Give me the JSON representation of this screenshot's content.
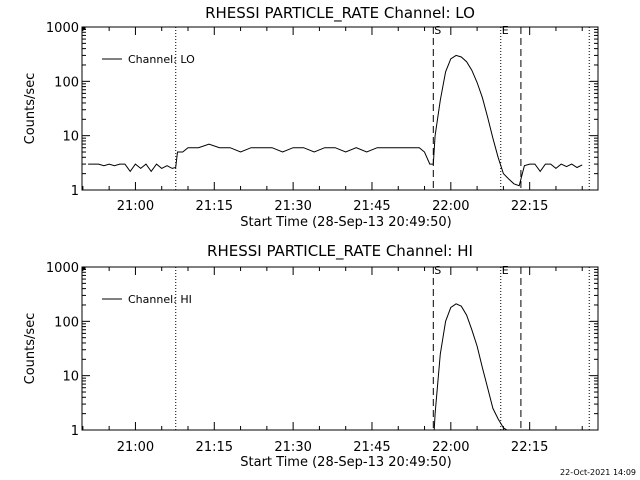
{
  "chart_data": [
    {
      "type": "line",
      "title": "RHESSI PARTICLE_RATE Channel: LO",
      "xlabel": "Start Time (28-Sep-13 20:49:50)",
      "ylabel": "Counts/sec",
      "yscale": "log",
      "ylim": [
        1,
        1000
      ],
      "xlim": [
        "20:49:50",
        "22:28:00"
      ],
      "xticks": [
        "21:00",
        "21:15",
        "21:30",
        "21:45",
        "22:00",
        "22:15"
      ],
      "yticks": [
        "1",
        "10",
        "100",
        "1000"
      ],
      "legend": {
        "label": "Channel: LO",
        "placement": "top-left"
      },
      "markers": [
        {
          "label": "S",
          "time": "21:56:40",
          "style": "dashed"
        },
        {
          "label": "E",
          "time": "22:09:30",
          "style": "dotted"
        }
      ],
      "vlines": [
        {
          "time": "21:07:40",
          "style": "dotted"
        },
        {
          "time": "22:13:20",
          "style": "dashed"
        },
        {
          "time": "22:26:20",
          "style": "dotted"
        }
      ],
      "series": [
        {
          "x": [
            "20:51:00",
            "20:52:00",
            "20:53:00",
            "20:54:00",
            "20:55:00",
            "20:56:00",
            "20:57:00",
            "20:58:00",
            "20:59:00",
            "21:00:00",
            "21:01:00",
            "21:02:00",
            "21:03:00",
            "21:04:00",
            "21:05:00",
            "21:06:00",
            "21:07:00",
            "21:07:40",
            "21:08:00",
            "21:09:00",
            "21:10:00",
            "21:12:00",
            "21:14:00",
            "21:16:00",
            "21:18:00",
            "21:20:00",
            "21:22:00",
            "21:24:00",
            "21:26:00",
            "21:28:00",
            "21:30:00",
            "21:32:00",
            "21:34:00",
            "21:36:00",
            "21:38:00",
            "21:40:00",
            "21:42:00",
            "21:44:00",
            "21:46:00",
            "21:48:00",
            "21:50:00",
            "21:52:00",
            "21:54:00",
            "21:55:00",
            "21:56:00",
            "21:56:40",
            "21:57:00",
            "21:58:00",
            "21:59:00",
            "22:00:00",
            "22:01:00",
            "22:02:00",
            "22:03:00",
            "22:04:00",
            "22:05:00",
            "22:06:00",
            "22:07:00",
            "22:08:00",
            "22:09:00",
            "22:10:00",
            "22:11:00",
            "22:12:00",
            "22:13:00",
            "22:14:00",
            "22:15:00",
            "22:16:00",
            "22:17:00",
            "22:18:00",
            "22:19:00",
            "22:20:00",
            "22:21:00",
            "22:22:00",
            "22:23:00",
            "22:24:00",
            "22:25:00"
          ],
          "values": [
            3,
            3,
            3,
            2.8,
            3,
            2.8,
            3,
            3,
            2.2,
            3,
            2.5,
            3,
            2.2,
            3,
            2.5,
            2.8,
            2.5,
            2.6,
            5,
            5,
            6,
            6,
            7,
            6,
            6,
            5,
            6,
            6,
            6,
            5,
            6,
            6,
            5,
            6,
            6,
            5,
            6,
            5,
            6,
            6,
            6,
            6,
            6,
            5,
            3,
            3,
            10,
            45,
            150,
            260,
            300,
            280,
            230,
            160,
            95,
            50,
            22,
            9,
            4,
            2,
            1.6,
            1.3,
            1.2,
            2.8,
            3,
            3,
            2.2,
            3,
            3,
            2.5,
            3,
            2.7,
            3,
            2.6,
            2.9
          ]
        }
      ]
    },
    {
      "type": "line",
      "title": "RHESSI PARTICLE_RATE Channel: HI",
      "xlabel": "Start Time (28-Sep-13 20:49:50)",
      "ylabel": "Counts/sec",
      "yscale": "log",
      "ylim": [
        1,
        1000
      ],
      "xlim": [
        "20:49:50",
        "22:28:00"
      ],
      "xticks": [
        "21:00",
        "21:15",
        "21:30",
        "21:45",
        "22:00",
        "22:15"
      ],
      "yticks": [
        "1",
        "10",
        "100",
        "1000"
      ],
      "legend": {
        "label": "Channel: HI",
        "placement": "top-left"
      },
      "markers": [
        {
          "label": "S",
          "time": "21:56:40",
          "style": "dashed"
        },
        {
          "label": "E",
          "time": "22:09:30",
          "style": "dotted"
        }
      ],
      "vlines": [
        {
          "time": "21:07:40",
          "style": "dotted"
        },
        {
          "time": "22:13:20",
          "style": "dashed"
        },
        {
          "time": "22:26:20",
          "style": "dotted"
        }
      ],
      "series": [
        {
          "x": [
            "21:56:50",
            "21:57:00",
            "21:58:00",
            "21:59:00",
            "22:00:00",
            "22:01:00",
            "22:02:00",
            "22:03:00",
            "22:04:00",
            "22:05:00",
            "22:06:00",
            "22:07:00",
            "22:08:00",
            "22:09:00",
            "22:10:00",
            "22:10:40"
          ],
          "values": [
            1,
            2,
            25,
            100,
            180,
            210,
            190,
            130,
            70,
            35,
            14,
            6,
            2.5,
            1.6,
            1.1,
            1
          ]
        }
      ]
    }
  ],
  "footer": {
    "timestamp": "22-Oct-2021 14:09"
  }
}
